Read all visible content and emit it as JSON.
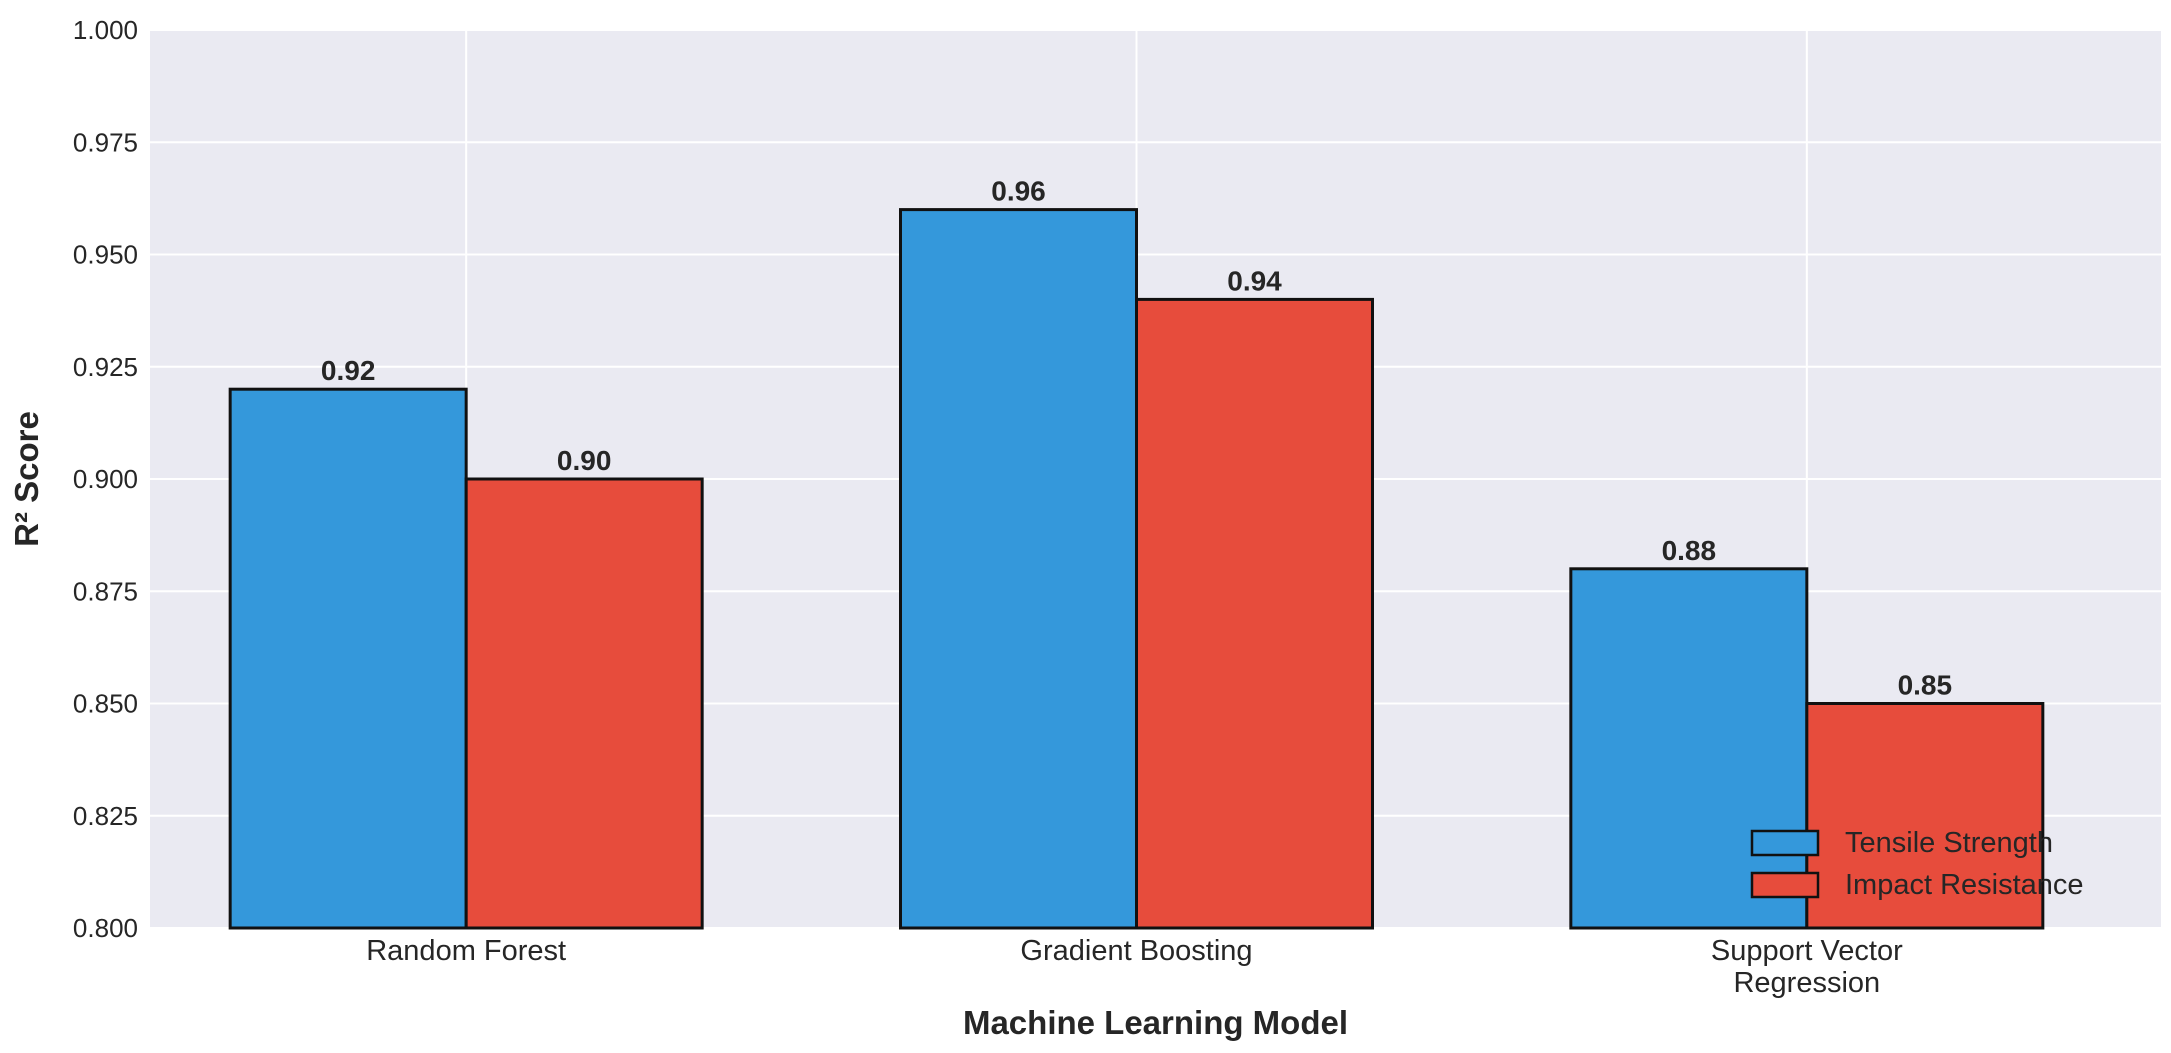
{
  "chart_data": {
    "type": "bar",
    "title": "",
    "xlabel": "Machine Learning Model",
    "ylabel": "R² Score",
    "ylim": [
      0.8,
      1.0
    ],
    "yticks": [
      "0.800",
      "0.825",
      "0.850",
      "0.875",
      "0.900",
      "0.925",
      "0.950",
      "0.975",
      "1.000"
    ],
    "categories": [
      [
        "Random Forest"
      ],
      [
        "Gradient Boosting"
      ],
      [
        "Support Vector",
        "Regression"
      ]
    ],
    "series": [
      {
        "name": "Tensile Strength",
        "values": [
          0.92,
          0.96,
          0.88
        ],
        "labels": [
          "0.92",
          "0.96",
          "0.88"
        ],
        "color": "#3498db"
      },
      {
        "name": "Impact Resistance",
        "values": [
          0.9,
          0.94,
          0.85
        ],
        "labels": [
          "0.90",
          "0.94",
          "0.85"
        ],
        "color": "#e74c3c"
      }
    ],
    "grid": true,
    "background": "#eaeaf2",
    "legend_position": "bottom-right"
  }
}
